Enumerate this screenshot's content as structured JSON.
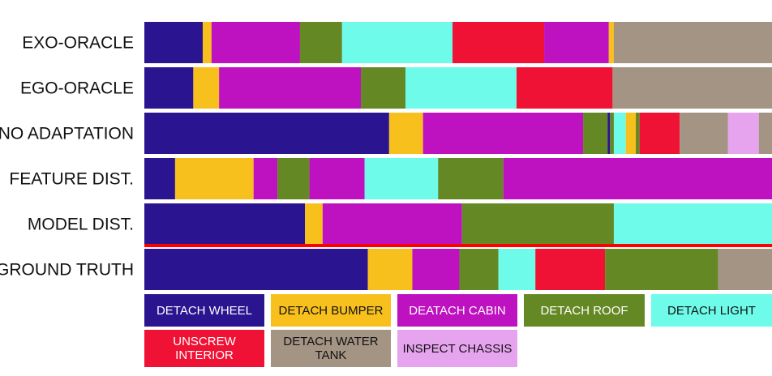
{
  "chart_data": {
    "type": "bar",
    "orientation": "horizontal-stacked-segments",
    "x_range": [
      0,
      1
    ],
    "rows": [
      {
        "label": "EXO-ORACLE",
        "segments": [
          {
            "action": "DETACH WHEEL",
            "start": 0.0,
            "end": 0.093
          },
          {
            "action": "DETACH BUMPER",
            "start": 0.093,
            "end": 0.107
          },
          {
            "action": "DEATACH CABIN",
            "start": 0.107,
            "end": 0.248
          },
          {
            "action": "DETACH ROOF",
            "start": 0.248,
            "end": 0.315
          },
          {
            "action": "DETACH LIGHT",
            "start": 0.315,
            "end": 0.491
          },
          {
            "action": "UNSCREW INTERIOR",
            "start": 0.491,
            "end": 0.637
          },
          {
            "action": "DEATACH CABIN",
            "start": 0.637,
            "end": 0.74
          },
          {
            "action": "DETACH BUMPER",
            "start": 0.74,
            "end": 0.748
          },
          {
            "action": "DETACH WATER TANK",
            "start": 0.748,
            "end": 1.0
          }
        ]
      },
      {
        "label": "EGO-ORACLE",
        "segments": [
          {
            "action": "DETACH WHEEL",
            "start": 0.0,
            "end": 0.078
          },
          {
            "action": "DETACH BUMPER",
            "start": 0.078,
            "end": 0.119
          },
          {
            "action": "DEATACH CABIN",
            "start": 0.119,
            "end": 0.345
          },
          {
            "action": "DETACH ROOF",
            "start": 0.345,
            "end": 0.416
          },
          {
            "action": "DETACH LIGHT",
            "start": 0.416,
            "end": 0.593
          },
          {
            "action": "UNSCREW INTERIOR",
            "start": 0.593,
            "end": 0.746
          },
          {
            "action": "DETACH WATER TANK",
            "start": 0.746,
            "end": 1.0
          }
        ]
      },
      {
        "label": "NO ADAPTATION",
        "segments": [
          {
            "action": "DETACH WHEEL",
            "start": 0.0,
            "end": 0.39
          },
          {
            "action": "DETACH BUMPER",
            "start": 0.39,
            "end": 0.444
          },
          {
            "action": "DEATACH CABIN",
            "start": 0.444,
            "end": 0.699
          },
          {
            "action": "DETACH ROOF",
            "start": 0.699,
            "end": 0.738
          },
          {
            "action": "DETACH WHEEL",
            "start": 0.738,
            "end": 0.742
          },
          {
            "action": "DETACH ROOF",
            "start": 0.742,
            "end": 0.748
          },
          {
            "action": "DETACH LIGHT",
            "start": 0.748,
            "end": 0.767
          },
          {
            "action": "DETACH BUMPER",
            "start": 0.767,
            "end": 0.783
          },
          {
            "action": "DETACH ROOF",
            "start": 0.783,
            "end": 0.789
          },
          {
            "action": "UNSCREW INTERIOR",
            "start": 0.789,
            "end": 0.853
          },
          {
            "action": "DETACH WATER TANK",
            "start": 0.853,
            "end": 0.93
          },
          {
            "action": "INSPECT CHASSIS",
            "start": 0.93,
            "end": 0.979
          },
          {
            "action": "DETACH WATER TANK",
            "start": 0.979,
            "end": 1.0
          }
        ]
      },
      {
        "label": "FEATURE DIST.",
        "segments": [
          {
            "action": "DETACH WHEEL",
            "start": 0.0,
            "end": 0.049
          },
          {
            "action": "DETACH BUMPER",
            "start": 0.049,
            "end": 0.174
          },
          {
            "action": "DEATACH CABIN",
            "start": 0.174,
            "end": 0.212
          },
          {
            "action": "DETACH ROOF",
            "start": 0.212,
            "end": 0.263
          },
          {
            "action": "DEATACH CABIN",
            "start": 0.263,
            "end": 0.351
          },
          {
            "action": "DETACH LIGHT",
            "start": 0.351,
            "end": 0.468
          },
          {
            "action": "DETACH ROOF",
            "start": 0.468,
            "end": 0.572
          },
          {
            "action": "DEATACH CABIN",
            "start": 0.572,
            "end": 1.0
          }
        ]
      },
      {
        "label": "MODEL DIST.",
        "segments": [
          {
            "action": "DETACH WHEEL",
            "start": 0.0,
            "end": 0.256
          },
          {
            "action": "DETACH BUMPER",
            "start": 0.256,
            "end": 0.284
          },
          {
            "action": "DEATACH CABIN",
            "start": 0.284,
            "end": 0.506
          },
          {
            "action": "DETACH ROOF",
            "start": 0.506,
            "end": 0.748
          },
          {
            "action": "DETACH LIGHT",
            "start": 0.748,
            "end": 1.0
          }
        ]
      },
      {
        "label": "GROUND TRUTH",
        "segments": [
          {
            "action": "DETACH WHEEL",
            "start": 0.0,
            "end": 0.356
          },
          {
            "action": "DETACH BUMPER",
            "start": 0.356,
            "end": 0.427
          },
          {
            "action": "DEATACH CABIN",
            "start": 0.427,
            "end": 0.502
          },
          {
            "action": "DETACH ROOF",
            "start": 0.502,
            "end": 0.564
          },
          {
            "action": "DETACH LIGHT",
            "start": 0.564,
            "end": 0.623
          },
          {
            "action": "UNSCREW INTERIOR",
            "start": 0.623,
            "end": 0.734
          },
          {
            "action": "DETACH ROOF",
            "start": 0.734,
            "end": 0.914
          },
          {
            "action": "DETACH WATER TANK",
            "start": 0.914,
            "end": 1.0
          }
        ]
      }
    ],
    "separator_before_row": "GROUND TRUTH",
    "separator_color": "#ff0000",
    "legend": [
      {
        "label": "DETACH WHEEL",
        "color": "#2b148f",
        "text_color": "#ffffff"
      },
      {
        "label": "DETACH BUMPER",
        "color": "#f8c01d",
        "text_color": "#111111"
      },
      {
        "label": "DEATACH CABIN",
        "color": "#be11c0",
        "text_color": "#ffffff"
      },
      {
        "label": "DETACH ROOF",
        "color": "#648824",
        "text_color": "#ffffff"
      },
      {
        "label": "DETACH LIGHT",
        "color": "#6efbe9",
        "text_color": "#111111"
      },
      {
        "label": "UNSCREW INTERIOR",
        "color": "#ef1235",
        "text_color": "#ffffff"
      },
      {
        "label": "DETACH WATER TANK",
        "color": "#a49484",
        "text_color": "#111111"
      },
      {
        "label": "INSPECT CHASSIS",
        "color": "#e6a4ee",
        "text_color": "#111111"
      }
    ]
  }
}
